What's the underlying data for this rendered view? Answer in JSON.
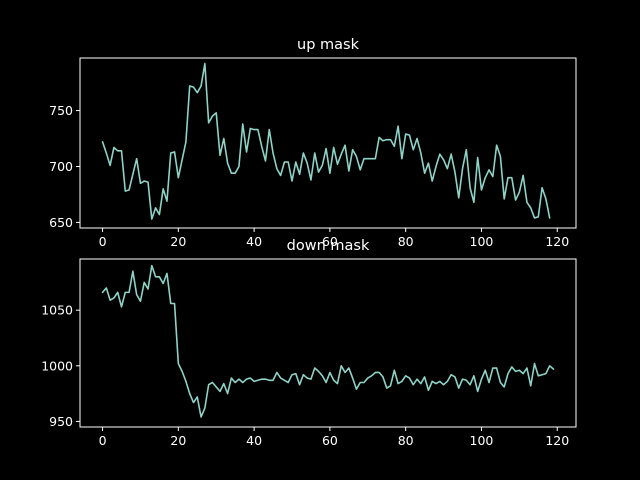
{
  "colors": {
    "background": "#000000",
    "axes": "#ffffff",
    "series": "#8dd3c7"
  },
  "chart_data": [
    {
      "type": "line",
      "title": "up mask",
      "xlabel": "",
      "ylabel": "",
      "xlim": [
        -5.95,
        124.95
      ],
      "ylim": [
        645,
        797
      ],
      "xticks": [
        0,
        20,
        40,
        60,
        80,
        100,
        120
      ],
      "yticks": [
        650,
        700,
        750
      ],
      "grid": false,
      "series": [
        {
          "values": [
            722,
            712,
            701,
            717,
            714,
            714,
            678,
            679,
            693,
            707,
            685,
            687,
            686,
            653,
            663,
            657,
            680,
            669,
            712,
            713,
            690,
            706,
            722,
            772,
            771,
            766,
            772,
            792,
            739,
            745,
            748,
            710,
            725,
            703,
            694,
            694,
            700,
            738,
            713,
            734,
            733,
            733,
            718,
            705,
            733,
            712,
            698,
            692,
            704,
            704,
            687,
            704,
            693,
            712,
            703,
            688,
            712,
            695,
            701,
            716,
            694,
            717,
            702,
            711,
            719,
            696,
            715,
            709,
            697,
            707,
            707,
            707,
            707,
            726,
            723,
            724,
            724,
            718,
            736,
            707,
            729,
            728,
            715,
            725,
            712,
            694,
            703,
            687,
            700,
            711,
            706,
            698,
            711,
            695,
            672,
            698,
            715,
            681,
            668,
            708,
            679,
            690,
            697,
            691,
            719,
            709,
            671,
            690,
            690,
            670,
            677,
            692,
            668,
            663,
            654,
            655,
            681,
            671,
            654
          ]
        }
      ]
    },
    {
      "type": "line",
      "title": "down mask",
      "xlabel": "",
      "ylabel": "",
      "xlim": [
        -5.95,
        124.95
      ],
      "ylim": [
        945,
        1096
      ],
      "xticks": [
        0,
        20,
        40,
        60,
        80,
        100,
        120
      ],
      "yticks": [
        950,
        1000,
        1050
      ],
      "grid": false,
      "series": [
        {
          "values": [
            1066,
            1070,
            1059,
            1061,
            1066,
            1053,
            1066,
            1066,
            1085,
            1064,
            1058,
            1075,
            1069,
            1090,
            1080,
            1080,
            1074,
            1083,
            1056,
            1056,
            1002,
            995,
            986,
            975,
            967,
            972,
            954,
            962,
            983,
            985,
            981,
            977,
            984,
            975,
            989,
            985,
            988,
            985,
            988,
            989,
            986,
            987,
            988,
            988,
            987,
            987,
            994,
            989,
            987,
            985,
            992,
            993,
            983,
            992,
            989,
            988,
            998,
            995,
            991,
            985,
            994,
            987,
            984,
            1000,
            994,
            998,
            989,
            979,
            985,
            985,
            989,
            991,
            994,
            994,
            990,
            980,
            982,
            996,
            984,
            986,
            991,
            989,
            983,
            988,
            984,
            990,
            978,
            986,
            984,
            986,
            983,
            986,
            992,
            990,
            980,
            988,
            987,
            983,
            991,
            977,
            988,
            996,
            985,
            998,
            998,
            985,
            981,
            993,
            999,
            995,
            996,
            993,
            998,
            982,
            1002,
            991,
            992,
            993,
            1000,
            997
          ]
        }
      ]
    }
  ]
}
